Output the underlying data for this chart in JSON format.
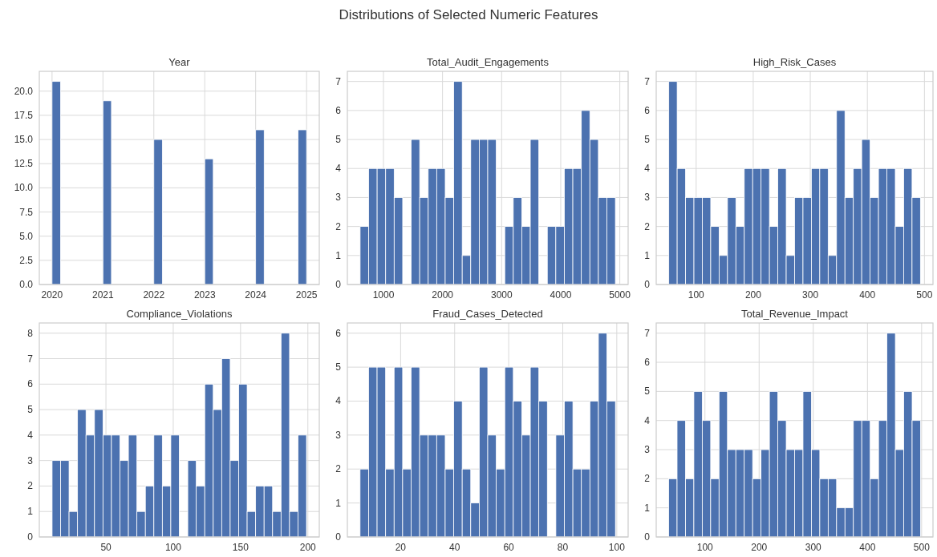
{
  "chart_data": [
    {
      "type": "histogram",
      "title": "Year",
      "annotations": [
        "Distributions of Selected Numeric Features"
      ],
      "color": "#4c72b0",
      "grid": true,
      "bins": [
        2020,
        2020.167,
        2020.333,
        2020.5,
        2020.667,
        2020.833,
        2021,
        2021.167,
        2021.333,
        2021.5,
        2021.667,
        2021.833,
        2022,
        2022.167,
        2022.333,
        2022.5,
        2022.667,
        2022.833,
        2023,
        2023.167,
        2023.333,
        2023.5,
        2023.667,
        2023.833,
        2024,
        2024.167,
        2024.333,
        2024.5,
        2024.667,
        2024.833,
        2025
      ],
      "values": [
        21,
        0,
        0,
        0,
        0,
        0,
        19,
        0,
        0,
        0,
        0,
        0,
        15,
        0,
        0,
        0,
        0,
        0,
        13,
        0,
        0,
        0,
        0,
        0,
        16,
        0,
        0,
        0,
        0,
        16
      ],
      "xlim": [
        2019.75,
        2025.25
      ],
      "xticks": [
        2020,
        2021,
        2022,
        2023,
        2024,
        2025
      ],
      "ylim": [
        0,
        22.05
      ],
      "yticks": [
        {
          "value": 0,
          "label": "0.0"
        },
        {
          "value": 2.5,
          "label": "2.5"
        },
        {
          "value": 5,
          "label": "5.0"
        },
        {
          "value": 7.5,
          "label": "7.5"
        },
        {
          "value": 10,
          "label": "10.0"
        },
        {
          "value": 12.5,
          "label": "12.5"
        },
        {
          "value": 15,
          "label": "15.0"
        },
        {
          "value": 17.5,
          "label": "17.5"
        },
        {
          "value": 20,
          "label": "20.0"
        }
      ]
    },
    {
      "type": "histogram",
      "title": "Total_Audit_Engagements",
      "color": "#4c72b0",
      "grid": true,
      "bins": [
        605,
        749,
        893,
        1037,
        1181,
        1325,
        1469,
        1613,
        1757,
        1901,
        2045,
        2189,
        2333,
        2477,
        2621,
        2765,
        2909,
        3053,
        3197,
        3341,
        3485,
        3629,
        3773,
        3917,
        4061,
        4205,
        4349,
        4493,
        4637,
        4781,
        4925
      ],
      "values": [
        2,
        4,
        4,
        4,
        3,
        0,
        5,
        3,
        4,
        4,
        3,
        7,
        1,
        5,
        5,
        5,
        0,
        2,
        3,
        2,
        5,
        0,
        2,
        2,
        4,
        4,
        6,
        5,
        3,
        3
      ],
      "xlim": [
        389,
        5141
      ],
      "xticks": [
        1000,
        2000,
        3000,
        4000,
        5000
      ],
      "ylim": [
        0,
        7.35
      ],
      "yticks": [
        0,
        1,
        2,
        3,
        4,
        5,
        6,
        7
      ]
    },
    {
      "type": "histogram",
      "title": "High_Risk_Cases",
      "color": "#4c72b0",
      "grid": true,
      "bins": [
        52,
        66.7,
        81.4,
        96.1,
        110.8,
        125.5,
        140.2,
        154.9,
        169.6,
        184.3,
        199,
        213.7,
        228.4,
        243.1,
        257.8,
        272.5,
        287.2,
        301.9,
        316.6,
        331.3,
        346,
        360.7,
        375.4,
        390.1,
        404.8,
        419.5,
        434.2,
        448.9,
        463.6,
        478.3,
        493
      ],
      "values": [
        7,
        4,
        3,
        3,
        3,
        2,
        1,
        3,
        2,
        4,
        4,
        4,
        2,
        4,
        1,
        3,
        3,
        4,
        4,
        1,
        6,
        3,
        4,
        5,
        3,
        4,
        4,
        2,
        4,
        3
      ],
      "xlim": [
        30,
        515
      ],
      "xticks": [
        100,
        200,
        300,
        400,
        500
      ],
      "ylim": [
        0,
        7.35
      ],
      "yticks": [
        0,
        1,
        2,
        3,
        4,
        5,
        6,
        7
      ]
    },
    {
      "type": "histogram",
      "title": "Compliance_Violations",
      "color": "#4c72b0",
      "grid": true,
      "bins": [
        10,
        16.3,
        22.6,
        28.9,
        35.2,
        41.5,
        47.8,
        54.1,
        60.4,
        66.7,
        73,
        79.3,
        85.6,
        91.9,
        98.2,
        104.5,
        110.8,
        117.1,
        123.4,
        129.7,
        136,
        142.3,
        148.6,
        154.9,
        161.2,
        167.5,
        173.8,
        180.1,
        186.4,
        192.7,
        199
      ],
      "values": [
        3,
        3,
        1,
        5,
        4,
        5,
        4,
        4,
        3,
        4,
        1,
        2,
        4,
        2,
        4,
        0,
        3,
        2,
        6,
        5,
        7,
        3,
        6,
        1,
        2,
        2,
        1,
        8,
        1,
        4
      ],
      "xlim": [
        0.5,
        208.5
      ],
      "xticks": [
        50,
        100,
        150,
        200
      ],
      "ylim": [
        0,
        8.4
      ],
      "yticks": [
        0,
        1,
        2,
        3,
        4,
        5,
        6,
        7,
        8
      ]
    },
    {
      "type": "histogram",
      "title": "Fraud_Cases_Detected",
      "color": "#4c72b0",
      "grid": true,
      "bins": [
        5,
        8.15,
        11.3,
        14.45,
        17.6,
        20.75,
        23.9,
        27.05,
        30.2,
        33.35,
        36.5,
        39.65,
        42.8,
        45.95,
        49.1,
        52.25,
        55.4,
        58.55,
        61.7,
        64.85,
        68,
        71.15,
        74.3,
        77.45,
        80.6,
        83.75,
        86.9,
        90.05,
        93.2,
        96.35,
        99.5
      ],
      "values": [
        2,
        5,
        5,
        2,
        5,
        2,
        5,
        3,
        3,
        3,
        2,
        4,
        2,
        1,
        5,
        3,
        2,
        5,
        4,
        3,
        5,
        4,
        0,
        3,
        4,
        2,
        2,
        4,
        6,
        4
      ],
      "xlim": [
        0.3,
        104.2
      ],
      "xticks": [
        20,
        40,
        60,
        80,
        100
      ],
      "ylim": [
        0,
        6.3
      ],
      "yticks": [
        0,
        1,
        2,
        3,
        4,
        5,
        6
      ]
    },
    {
      "type": "histogram",
      "title": "Total_Revenue_Impact",
      "color": "#4c72b0",
      "grid": true,
      "bins": [
        33,
        48.5,
        64,
        79.5,
        95,
        110.5,
        126,
        141.5,
        157,
        172.5,
        188,
        203.5,
        219,
        234.5,
        250,
        265.5,
        281,
        296.5,
        312,
        327.5,
        343,
        358.5,
        374,
        389.5,
        405,
        420.5,
        436,
        451.5,
        467,
        482.5,
        498
      ],
      "values": [
        2,
        4,
        2,
        5,
        4,
        2,
        5,
        3,
        3,
        3,
        2,
        3,
        5,
        4,
        3,
        3,
        5,
        3,
        2,
        2,
        1,
        1,
        4,
        4,
        2,
        4,
        7,
        3,
        5,
        4
      ],
      "xlim": [
        10,
        521
      ],
      "xticks": [
        100,
        200,
        300,
        400,
        500
      ],
      "ylim": [
        0,
        7.35
      ],
      "yticks": [
        0,
        1,
        2,
        3,
        4,
        5,
        6,
        7
      ]
    }
  ]
}
